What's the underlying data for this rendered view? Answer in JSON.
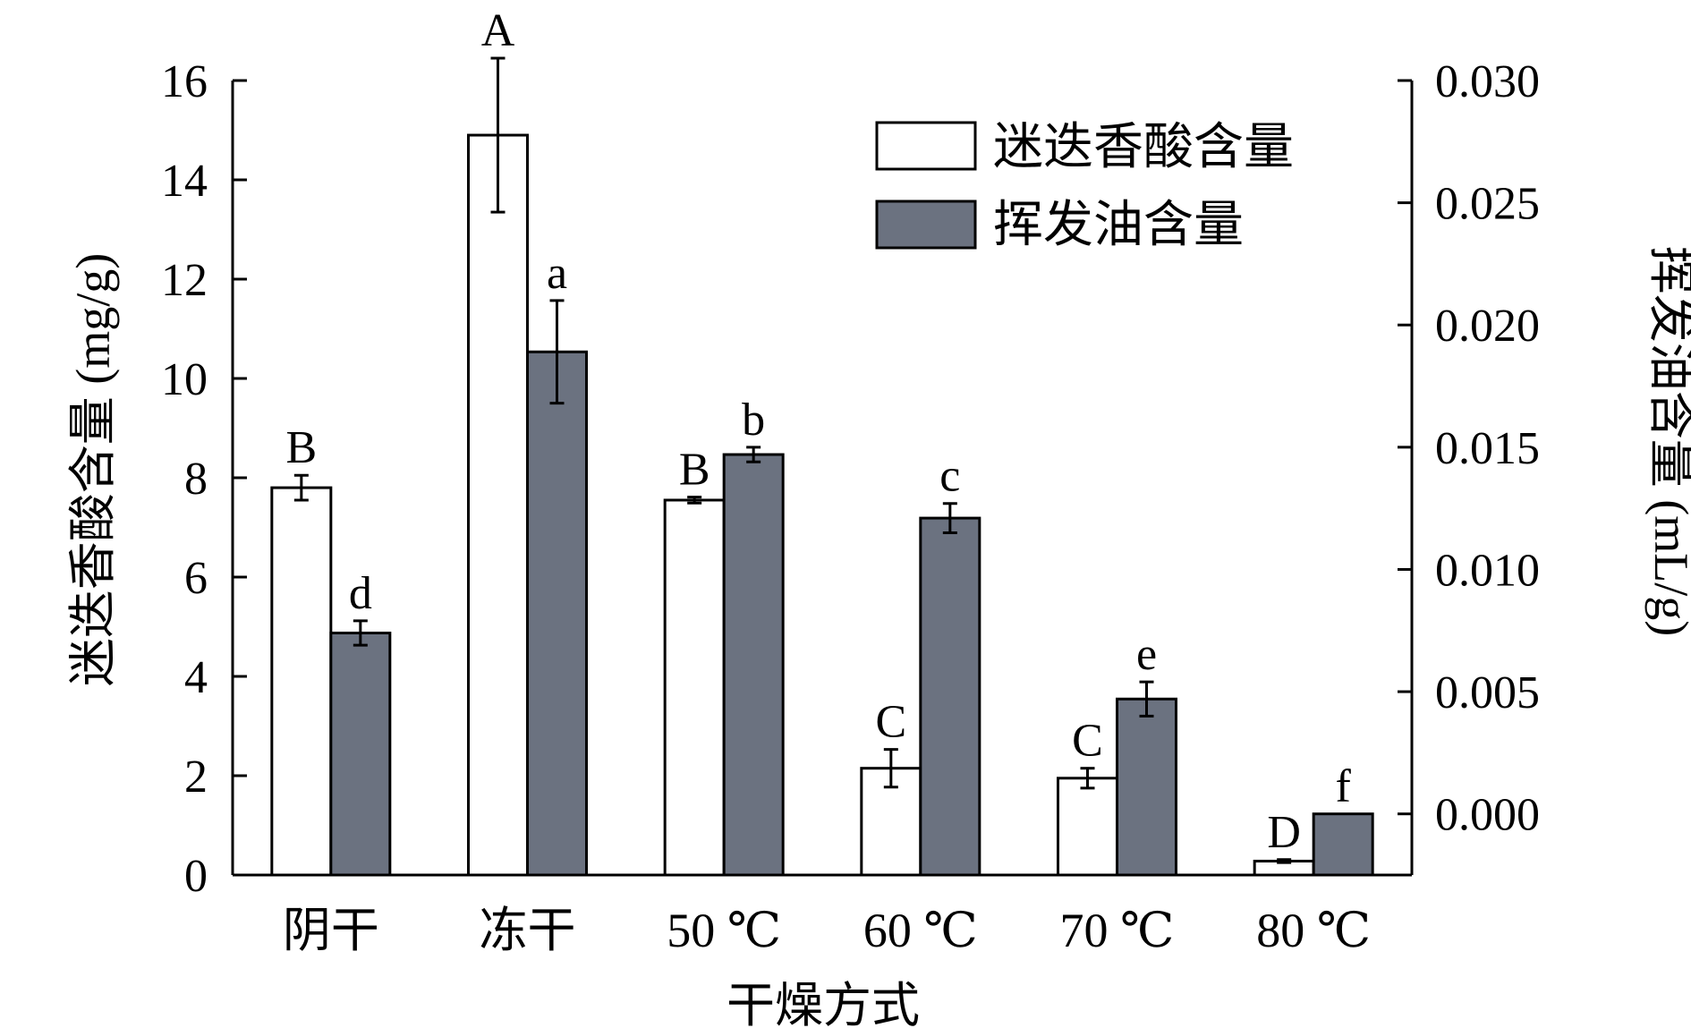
{
  "chart_data": {
    "type": "bar",
    "xlabel": "干燥方式",
    "ylabel_left": "迷迭香酸含量 (mg/g)",
    "ylabel_right": "挥发油含量 (mL/g)",
    "ylim_left": [
      0,
      16
    ],
    "ylim_right": [
      -0.0025,
      0.03
    ],
    "yticks_left": [
      "0",
      "2",
      "4",
      "6",
      "8",
      "10",
      "12",
      "14",
      "16"
    ],
    "yticks_right": [
      "0.000",
      "0.005",
      "0.010",
      "0.015",
      "0.020",
      "0.025",
      "0.030"
    ],
    "categories": [
      "阴干",
      "冻干",
      "50 ℃",
      "60 ℃",
      "70 ℃",
      "80 ℃"
    ],
    "legend_position": "top-right",
    "series": [
      {
        "name": "迷迭香酸含量",
        "axis": "left",
        "color": "#ffffff",
        "values": [
          7.8,
          14.9,
          7.55,
          2.15,
          1.95,
          0.28
        ],
        "errors": [
          0.25,
          1.55,
          0.06,
          0.38,
          0.2,
          0.03
        ],
        "letters": [
          "B",
          "A",
          "B",
          "C",
          "C",
          "D"
        ]
      },
      {
        "name": "挥发油含量",
        "axis": "right",
        "color": "#6b7280",
        "values": [
          0.0074,
          0.0189,
          0.0147,
          0.0121,
          0.0047,
          0.0
        ],
        "errors": [
          0.0005,
          0.0021,
          0.0003,
          0.0006,
          0.0007,
          0.0
        ],
        "letters": [
          "d",
          "a",
          "b",
          "c",
          "e",
          "f"
        ]
      }
    ]
  }
}
